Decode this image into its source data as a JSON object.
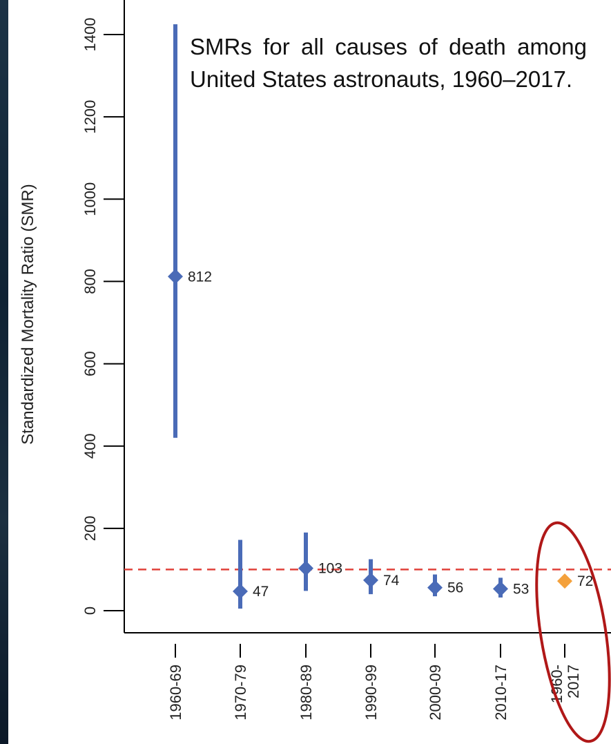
{
  "chart_data": {
    "type": "scatter",
    "subtype": "point-with-confidence-interval",
    "annotation": "SMRs for all causes of death among United States astronauts, 1960–2017.",
    "ylabel": "Standardized Mortality Ratio (SMR)",
    "xlabel": "",
    "ylim": [
      -30,
      1450
    ],
    "yticks": [
      "0",
      "200",
      "400",
      "600",
      "800",
      "1000",
      "1200",
      "1400"
    ],
    "reference_line": {
      "value": 100,
      "style": "dashed",
      "color": "#e0413a"
    },
    "categories": [
      "1960-69",
      "1970-79",
      "1980-89",
      "1990-99",
      "2000-09",
      "2010-17",
      "1960-\n2017"
    ],
    "points": [
      {
        "category": "1960-69",
        "value": 812,
        "label": "812",
        "ci_low": 420,
        "ci_high": 1425,
        "color": "#4a6bb7"
      },
      {
        "category": "1970-79",
        "value": 47,
        "label": "47",
        "ci_low": 5,
        "ci_high": 172,
        "color": "#4a6bb7"
      },
      {
        "category": "1980-89",
        "value": 103,
        "label": "103",
        "ci_low": 48,
        "ci_high": 190,
        "color": "#4a6bb7"
      },
      {
        "category": "1990-99",
        "value": 74,
        "label": "74",
        "ci_low": 40,
        "ci_high": 125,
        "color": "#4a6bb7"
      },
      {
        "category": "2000-09",
        "value": 56,
        "label": "56",
        "ci_low": 35,
        "ci_high": 88,
        "color": "#4a6bb7"
      },
      {
        "category": "2010-17",
        "value": 53,
        "label": "53",
        "ci_low": 32,
        "ci_high": 80,
        "color": "#4a6bb7"
      },
      {
        "category": "1960-\n2017",
        "value": 72,
        "label": "72",
        "ci_low": null,
        "ci_high": null,
        "color": "#f4a13c"
      }
    ],
    "highlight": {
      "category": "1960-\n2017",
      "shape": "ellipse",
      "color": "#b01818"
    },
    "grid": false
  }
}
